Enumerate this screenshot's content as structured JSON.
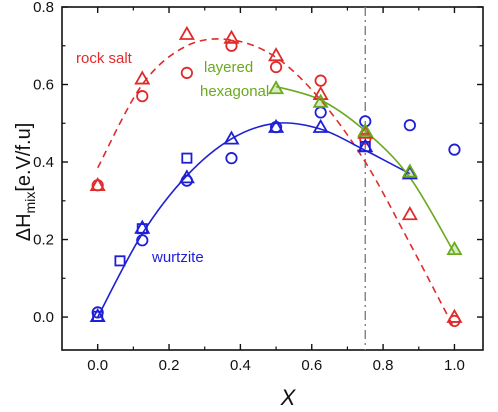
{
  "chart_data": {
    "type": "scatter",
    "xlabel": "X",
    "ylabel": {
      "prefix": "ΔH",
      "subscript": "mix",
      "suffix": "[e.V/f.u]"
    },
    "xlim": [
      -0.1,
      1.08
    ],
    "ylim": [
      -0.085,
      0.8
    ],
    "x_ticks": [
      "0.0",
      "0.2",
      "0.4",
      "0.6",
      "0.8",
      "1.0"
    ],
    "y_ticks": [
      "0.0",
      "0.2",
      "0.4",
      "0.6",
      "0.8"
    ],
    "x_tick_values": [
      0,
      0.2,
      0.4,
      0.6,
      0.8,
      1.0
    ],
    "y_tick_values": [
      0,
      0.2,
      0.4,
      0.6,
      0.8
    ],
    "grid": false,
    "vertical_line": {
      "x": 0.75,
      "style": "dash-dot",
      "color": "#808080"
    },
    "colors": {
      "rock_salt": "#e02b2b",
      "wurtzite": "#1f1fd6",
      "layered_hexagonal": "#6aaa1e"
    },
    "annotations": [
      {
        "text": "rock salt",
        "series": "rock_salt"
      },
      {
        "text": "layered",
        "series": "layered_hexagonal"
      },
      {
        "text": "hexagonal",
        "series": "layered_hexagonal"
      },
      {
        "text": "wurtzite",
        "series": "wurtzite"
      }
    ],
    "series": [
      {
        "key": "rock_salt",
        "color": "#e02b2b",
        "circles": [
          [
            0,
            0.34
          ],
          [
            0.125,
            0.57
          ],
          [
            0.25,
            0.63
          ],
          [
            0.375,
            0.7
          ],
          [
            0.5,
            0.645
          ],
          [
            0.625,
            0.61
          ],
          [
            0.75,
            0.46
          ],
          [
            1.0,
            -0.01
          ]
        ],
        "triangles": [
          [
            0,
            0.34
          ],
          [
            0.125,
            0.615
          ],
          [
            0.25,
            0.73
          ],
          [
            0.375,
            0.72
          ],
          [
            0.5,
            0.675
          ],
          [
            0.625,
            0.575
          ],
          [
            0.75,
            0.475
          ],
          [
            0.875,
            0.265
          ],
          [
            1.0,
            0.0
          ]
        ],
        "fit": {
          "style": "dashed",
          "x": [
            0,
            0.125,
            0.25,
            0.375,
            0.5,
            0.625,
            0.75,
            0.875,
            1.0
          ],
          "y": [
            0.385,
            0.6,
            0.7,
            0.715,
            0.67,
            0.56,
            0.4,
            0.19,
            -0.03
          ]
        }
      },
      {
        "key": "wurtzite",
        "color": "#1f1fd6",
        "circles": [
          [
            0,
            0.012
          ],
          [
            0.125,
            0.198
          ],
          [
            0.25,
            0.352
          ],
          [
            0.375,
            0.41
          ],
          [
            0.5,
            0.49
          ],
          [
            0.625,
            0.528
          ],
          [
            0.75,
            0.505
          ],
          [
            0.875,
            0.495
          ],
          [
            1.0,
            0.432
          ]
        ],
        "triangles": [
          [
            0,
            0.002
          ],
          [
            0.125,
            0.23
          ],
          [
            0.25,
            0.36
          ],
          [
            0.375,
            0.46
          ],
          [
            0.5,
            0.49
          ],
          [
            0.625,
            0.49
          ],
          [
            0.75,
            0.44
          ],
          [
            0.875,
            0.37
          ]
        ],
        "squares": [
          [
            0,
            0.002
          ],
          [
            0.0625,
            0.145
          ],
          [
            0.125,
            0.228
          ],
          [
            0.25,
            0.41
          ],
          [
            0.75,
            0.44
          ]
        ],
        "fit": {
          "style": "solid",
          "x": [
            0,
            0.125,
            0.25,
            0.375,
            0.5,
            0.625,
            0.75,
            0.875
          ],
          "y": [
            0.0,
            0.215,
            0.365,
            0.46,
            0.5,
            0.485,
            0.43,
            0.37
          ]
        }
      },
      {
        "key": "layered_hexagonal",
        "color": "#6aaa1e",
        "triangles": [
          [
            0.5,
            0.59
          ],
          [
            0.625,
            0.555
          ],
          [
            0.75,
            0.48
          ],
          [
            0.875,
            0.375
          ],
          [
            1.0,
            0.175
          ]
        ],
        "fit": {
          "style": "solid",
          "x": [
            0.5,
            0.625,
            0.75,
            0.875,
            1.0
          ],
          "y": [
            0.595,
            0.56,
            0.48,
            0.36,
            0.165
          ]
        }
      }
    ]
  }
}
